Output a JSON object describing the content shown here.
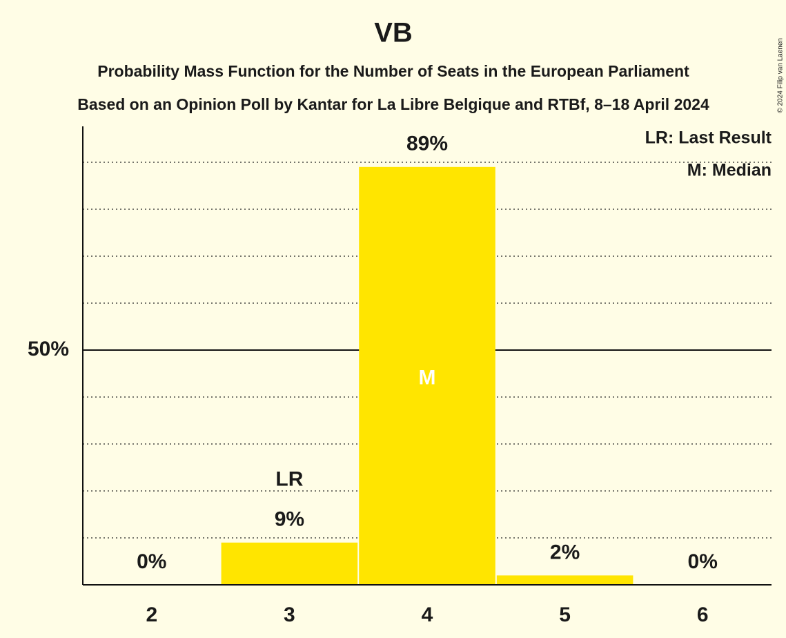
{
  "chart_data": {
    "type": "bar",
    "title": "VB",
    "subtitle": "Probability Mass Function for the Number of Seats in the European Parliament",
    "subtitle2": "Based on an Opinion Poll by Kantar for La Libre Belgique and RTBf, 8–18 April 2024",
    "credit": "© 2024 Filip van Laenen",
    "categories": [
      "2",
      "3",
      "4",
      "5",
      "6"
    ],
    "values": [
      0,
      9,
      89,
      2,
      0
    ],
    "value_labels": [
      "0%",
      "9%",
      "89%",
      "2%",
      "0%"
    ],
    "color": "#ffe500",
    "ylim": [
      0,
      100
    ],
    "yticks": [
      {
        "value": 50,
        "label": "50%"
      }
    ],
    "minor_yticks": [
      10,
      20,
      30,
      40,
      60,
      70,
      80,
      90
    ],
    "grid": true,
    "markers": {
      "last_result": {
        "label": "LR",
        "category": "3"
      },
      "median": {
        "label": "M",
        "category": "4"
      }
    },
    "legend": [
      "LR: Last Result",
      "M: Median"
    ],
    "legend_position": "top-right"
  }
}
